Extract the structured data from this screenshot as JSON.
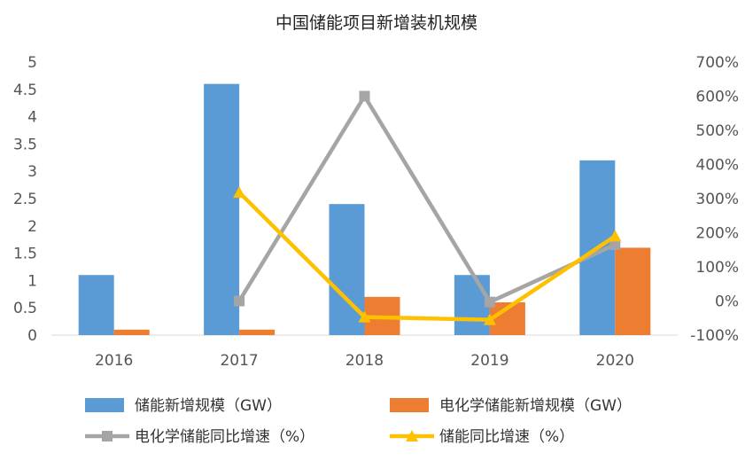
{
  "chart_data": {
    "type": "bar",
    "title": "中国储能项目新增装机规模",
    "categories": [
      "2016",
      "2017",
      "2018",
      "2019",
      "2020"
    ],
    "series": [
      {
        "name": "储能新增规模（GW）",
        "type": "bar",
        "axis": "left",
        "color": "#5B9BD5",
        "values": [
          1.1,
          4.6,
          2.4,
          1.1,
          3.2
        ]
      },
      {
        "name": "电化学储能新增规模（GW）",
        "type": "bar",
        "axis": "left",
        "color": "#ED7D31",
        "values": [
          0.1,
          0.1,
          0.7,
          0.6,
          1.6
        ]
      },
      {
        "name": "电化学储能同比增速（%）",
        "type": "line",
        "axis": "right",
        "color": "#A5A5A5",
        "marker": "square",
        "values": [
          null,
          0,
          600,
          -3,
          165
        ]
      },
      {
        "name": "储能同比增速（%）",
        "type": "line",
        "axis": "right",
        "color": "#FFC000",
        "marker": "triangle",
        "values": [
          null,
          318,
          -47,
          -55,
          190
        ]
      }
    ],
    "y_left": {
      "min": 0,
      "max": 5,
      "ticks": [
        "0",
        "0.5",
        "1",
        "1.5",
        "2",
        "2.5",
        "3",
        "3.5",
        "4",
        "4.5",
        "5"
      ]
    },
    "y_right": {
      "min": -100,
      "max": 700,
      "ticks": [
        "-100%",
        "0%",
        "100%",
        "200%",
        "300%",
        "400%",
        "500%",
        "600%",
        "700%"
      ]
    },
    "grid": false,
    "legend": "bottom"
  }
}
